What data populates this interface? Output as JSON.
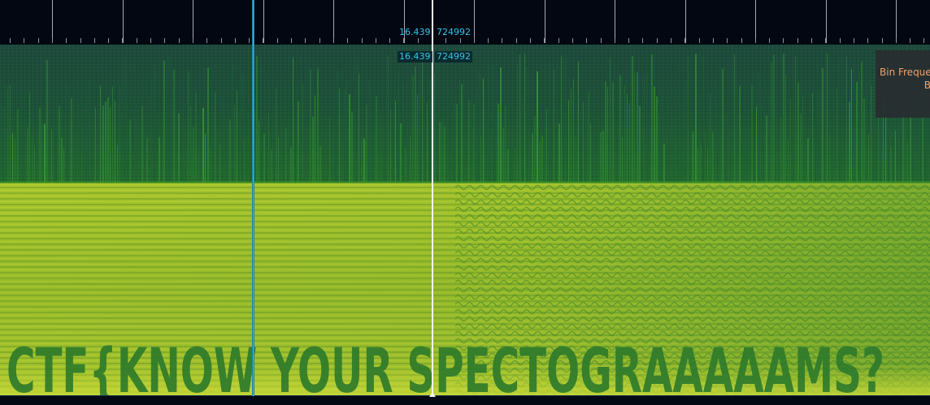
{
  "cursor_readout": {
    "time": "16.439",
    "frequency": "724992"
  },
  "spectrogram_readout": {
    "time": "16.439",
    "frequency": "724992"
  },
  "bin_panel": {
    "line1": "Bin Freque",
    "line2": "B"
  },
  "hidden_message": "CTF{KNOW YOUR SPECTOGRAAAAAMS?}",
  "visible_message_fragment": "CTF{KNOW YOUR SPECTOGRAAAAAMS?",
  "colors": {
    "background": "#030712",
    "spectrogram_low": "#1e4a3c",
    "spectrogram_mid": "#2f8a2a",
    "spectrogram_high": "#b9cf2e",
    "cursor_cyan": "#35d0ff",
    "cursor_white": "#f2f5f7",
    "readout_text": "#35c4e8",
    "bin_panel_text": "#f2a36a"
  }
}
